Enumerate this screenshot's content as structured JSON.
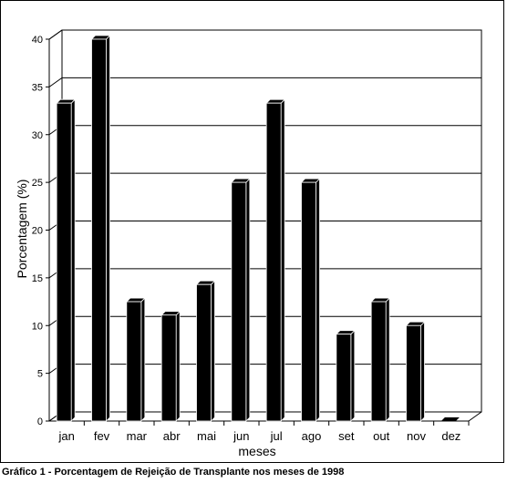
{
  "chart_data": {
    "type": "bar",
    "title": "",
    "xlabel": "meses",
    "ylabel": "Porcentagem (%)",
    "ylim": [
      0,
      40
    ],
    "yticks": [
      0,
      5,
      10,
      15,
      20,
      25,
      30,
      35,
      40
    ],
    "grid": true,
    "bar_color": "#000000",
    "categories": [
      "jan",
      "fev",
      "mar",
      "abr",
      "mai",
      "jun",
      "jul",
      "ago",
      "set",
      "out",
      "nov",
      "dez"
    ],
    "values": [
      33.3,
      40,
      12.5,
      11.1,
      14.3,
      25,
      33.3,
      25,
      9.1,
      12.5,
      10,
      0
    ]
  },
  "caption": "Gráfico 1 - Porcentagem de Rejeição de Transplante nos meses de 1998"
}
